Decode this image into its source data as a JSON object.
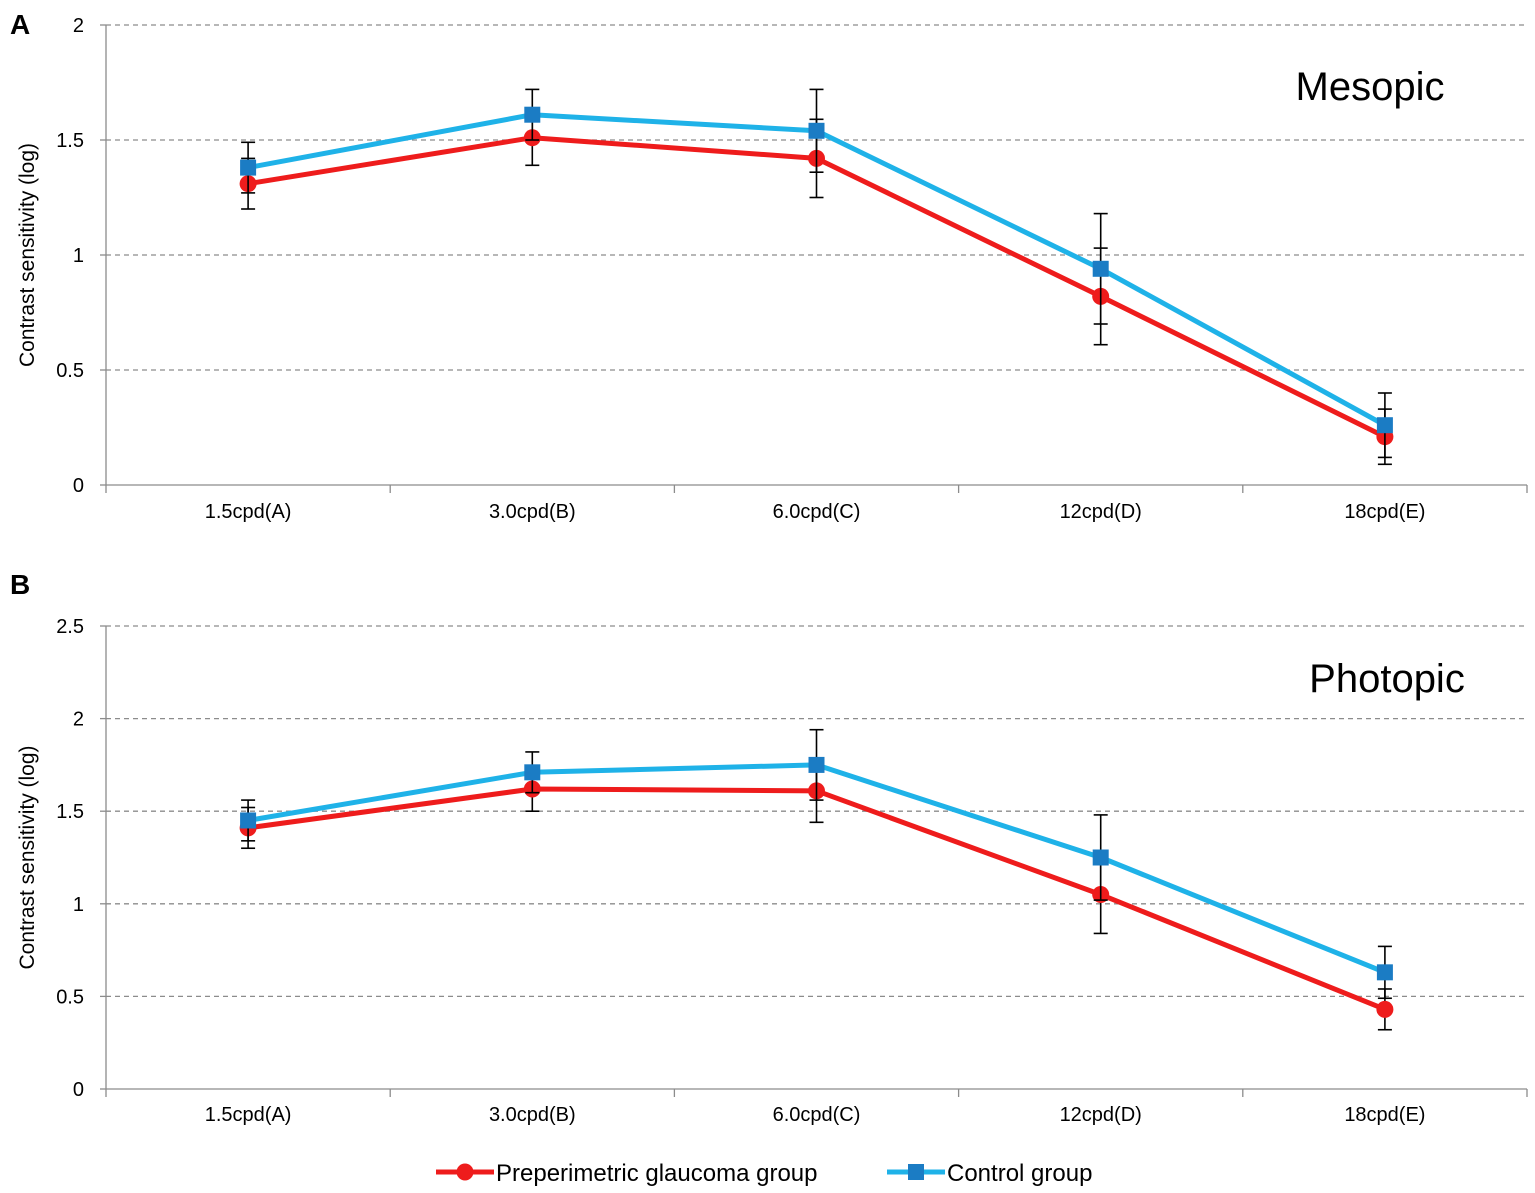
{
  "chart_data": [
    {
      "type": "line",
      "panel_label": "A",
      "title": "Mesopic",
      "ylabel": "Contrast sensitivity (log)",
      "xlabel": "",
      "ylim": [
        0,
        2
      ],
      "yticks": [
        0,
        0.5,
        1,
        1.5,
        2
      ],
      "ytick_labels": [
        "0",
        "0.5",
        "1",
        "1.5",
        "2"
      ],
      "grid": true,
      "categories": [
        "1.5cpd(A)",
        "3.0cpd(B)",
        "6.0cpd(C)",
        "12cpd(D)",
        "18cpd(E)"
      ],
      "series": [
        {
          "name": "Preperimetric glaucoma group",
          "color": "#ee1c1c",
          "marker": "circle",
          "values": [
            1.31,
            1.51,
            1.42,
            0.82,
            0.21
          ],
          "error": [
            0.11,
            0.12,
            0.17,
            0.21,
            0.12
          ]
        },
        {
          "name": "Control group",
          "color": "#1fb2e8",
          "marker": "square",
          "values": [
            1.38,
            1.61,
            1.54,
            0.94,
            0.26
          ],
          "error": [
            0.11,
            0.11,
            0.18,
            0.24,
            0.14
          ]
        }
      ]
    },
    {
      "type": "line",
      "panel_label": "B",
      "title": "Photopic",
      "ylabel": "Contrast sensitivity (log)",
      "xlabel": "",
      "ylim": [
        0,
        2.5
      ],
      "yticks": [
        0,
        0.5,
        1,
        1.5,
        2,
        2.5
      ],
      "ytick_labels": [
        "0",
        "0.5",
        "1",
        "1.5",
        "2",
        "2.5"
      ],
      "grid": true,
      "categories": [
        "1.5cpd(A)",
        "3.0cpd(B)",
        "6.0cpd(C)",
        "12cpd(D)",
        "18cpd(E)"
      ],
      "series": [
        {
          "name": "Preperimetric glaucoma group",
          "color": "#ee1c1c",
          "marker": "circle",
          "values": [
            1.41,
            1.62,
            1.61,
            1.05,
            0.43
          ],
          "error": [
            0.11,
            0.12,
            0.17,
            0.21,
            0.11
          ]
        },
        {
          "name": "Control group",
          "color": "#1fb2e8",
          "marker": "square",
          "values": [
            1.45,
            1.71,
            1.75,
            1.25,
            0.63
          ],
          "error": [
            0.11,
            0.11,
            0.19,
            0.23,
            0.14
          ]
        }
      ]
    }
  ],
  "legend": {
    "position": "bottom-center",
    "items": [
      {
        "label": "Preperimetric glaucoma group",
        "color": "#ee1c1c",
        "marker": "circle"
      },
      {
        "label": "Control group",
        "color": "#1fb2e8",
        "marker": "square"
      }
    ]
  },
  "marker_colors": {
    "circle": "#ee1c1c",
    "square": "#1b7cc4"
  }
}
